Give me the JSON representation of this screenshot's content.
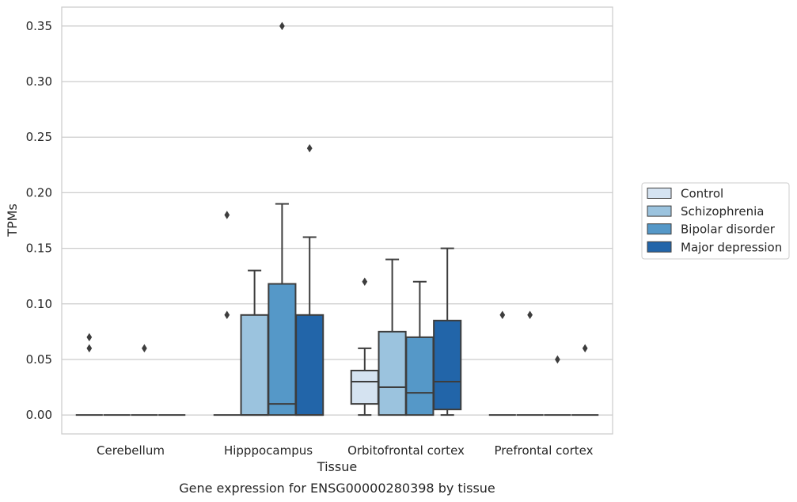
{
  "caption": "Gene expression for ENSG00000280398 by tissue",
  "chart_data": {
    "type": "box",
    "xlabel": "Tissue",
    "ylabel": "TPMs",
    "ylim": [
      -0.017,
      0.367
    ],
    "yticks": [
      0.0,
      0.05,
      0.1,
      0.15,
      0.2,
      0.25,
      0.3,
      0.35
    ],
    "ytick_labels": [
      "0.00",
      "0.05",
      "0.10",
      "0.15",
      "0.20",
      "0.25",
      "0.30",
      "0.35"
    ],
    "grid": "horizontal",
    "legend_position": "right",
    "categories": [
      "Cerebellum",
      "Hipppocampus",
      "Orbitofrontal cortex",
      "Prefrontal cortex"
    ],
    "series": [
      {
        "name": "Control",
        "color": "#d5e3f1",
        "boxes": [
          {
            "q1": 0.0,
            "median": 0.0,
            "q3": 0.0,
            "whislo": 0.0,
            "whishi": 0.0,
            "fliers": [
              0.07,
              0.06
            ]
          },
          {
            "q1": 0.0,
            "median": 0.0,
            "q3": 0.0,
            "whislo": 0.0,
            "whishi": 0.0,
            "fliers": [
              0.18,
              0.09
            ]
          },
          {
            "q1": 0.01,
            "median": 0.03,
            "q3": 0.04,
            "whislo": 0.0,
            "whishi": 0.06,
            "fliers": [
              0.12
            ]
          },
          {
            "q1": 0.0,
            "median": 0.0,
            "q3": 0.0,
            "whislo": 0.0,
            "whishi": 0.0,
            "fliers": [
              0.09
            ]
          }
        ]
      },
      {
        "name": "Schizophrenia",
        "color": "#9bc3de",
        "boxes": [
          {
            "q1": 0.0,
            "median": 0.0,
            "q3": 0.0,
            "whislo": 0.0,
            "whishi": 0.0,
            "fliers": []
          },
          {
            "q1": 0.0,
            "median": 0.0,
            "q3": 0.09,
            "whislo": 0.0,
            "whishi": 0.13,
            "fliers": []
          },
          {
            "q1": 0.0,
            "median": 0.025,
            "q3": 0.075,
            "whislo": 0.0,
            "whishi": 0.14,
            "fliers": []
          },
          {
            "q1": 0.0,
            "median": 0.0,
            "q3": 0.0,
            "whislo": 0.0,
            "whishi": 0.0,
            "fliers": [
              0.09
            ]
          }
        ]
      },
      {
        "name": "Bipolar disorder",
        "color": "#5598c8",
        "boxes": [
          {
            "q1": 0.0,
            "median": 0.0,
            "q3": 0.0,
            "whislo": 0.0,
            "whishi": 0.0,
            "fliers": [
              0.06
            ]
          },
          {
            "q1": 0.0,
            "median": 0.01,
            "q3": 0.118,
            "whislo": 0.0,
            "whishi": 0.19,
            "fliers": [
              0.35
            ]
          },
          {
            "q1": 0.0,
            "median": 0.02,
            "q3": 0.07,
            "whislo": 0.0,
            "whishi": 0.12,
            "fliers": []
          },
          {
            "q1": 0.0,
            "median": 0.0,
            "q3": 0.0,
            "whislo": 0.0,
            "whishi": 0.0,
            "fliers": [
              0.05
            ]
          }
        ]
      },
      {
        "name": "Major depression",
        "color": "#2265a9",
        "boxes": [
          {
            "q1": 0.0,
            "median": 0.0,
            "q3": 0.0,
            "whislo": 0.0,
            "whishi": 0.0,
            "fliers": []
          },
          {
            "q1": 0.0,
            "median": 0.0,
            "q3": 0.09,
            "whislo": 0.0,
            "whishi": 0.16,
            "fliers": [
              0.24
            ]
          },
          {
            "q1": 0.005,
            "median": 0.03,
            "q3": 0.085,
            "whislo": 0.0,
            "whishi": 0.15,
            "fliers": []
          },
          {
            "q1": 0.0,
            "median": 0.0,
            "q3": 0.0,
            "whislo": 0.0,
            "whishi": 0.0,
            "fliers": [
              0.06
            ]
          }
        ]
      }
    ]
  }
}
